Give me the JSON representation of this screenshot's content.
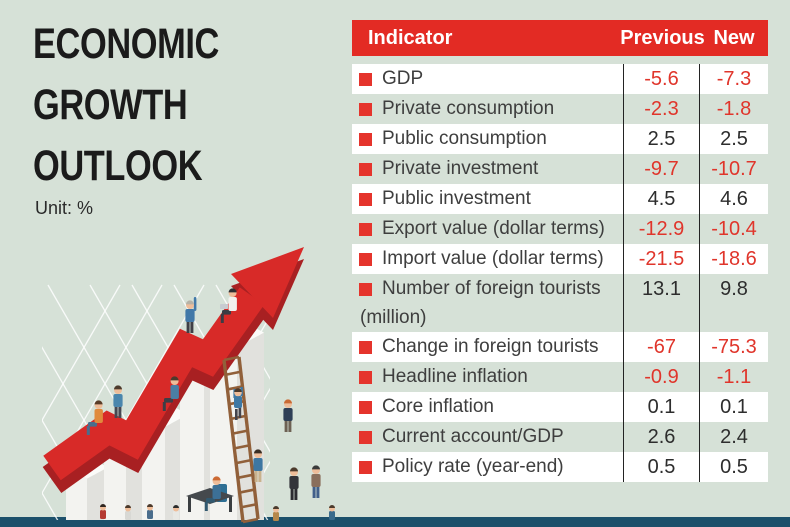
{
  "header": {
    "title_lines": [
      "ECONOMIC",
      "GROWTH",
      "OUTLOOK"
    ],
    "unit_label": "Unit: %"
  },
  "table": {
    "header": {
      "indicator": "Indicator",
      "previous": "Previous",
      "new": "New"
    },
    "rows": [
      {
        "indicator": "GDP",
        "previous": "-5.6",
        "new": "-7.3"
      },
      {
        "indicator": "Private consumption",
        "previous": "-2.3",
        "new": "-1.8"
      },
      {
        "indicator": "Public consumption",
        "previous": "2.5",
        "new": "2.5"
      },
      {
        "indicator": "Private investment",
        "previous": "-9.7",
        "new": "-10.7"
      },
      {
        "indicator": "Public investment",
        "previous": "4.5",
        "new": "4.6"
      },
      {
        "indicator": "Export value (dollar terms)",
        "previous": "-12.9",
        "new": "-10.4"
      },
      {
        "indicator": "Import value (dollar terms)",
        "previous": "-21.5",
        "new": "-18.6"
      },
      {
        "indicator": "Number of foreign tourists",
        "indicator2": "(million)",
        "previous": "13.1",
        "new": "9.8"
      },
      {
        "indicator": "Change in foreign tourists",
        "previous": "-67",
        "new": "-75.3"
      },
      {
        "indicator": "Headline inflation",
        "previous": "-0.9",
        "new": "-1.1"
      },
      {
        "indicator": "Core inflation",
        "previous": "0.1",
        "new": "0.1"
      },
      {
        "indicator": "Current account/GDP",
        "previous": "2.6",
        "new": "2.4"
      },
      {
        "indicator": "Policy rate (year-end)",
        "previous": "0.5",
        "new": "0.5"
      }
    ]
  },
  "chart_data": {
    "type": "table",
    "title": "ECONOMIC GROWTH OUTLOOK",
    "unit": "%",
    "columns": [
      "Indicator",
      "Previous",
      "New"
    ],
    "rows": [
      [
        "GDP",
        -5.6,
        -7.3
      ],
      [
        "Private consumption",
        -2.3,
        -1.8
      ],
      [
        "Public consumption",
        2.5,
        2.5
      ],
      [
        "Private investment",
        -9.7,
        -10.7
      ],
      [
        "Public investment",
        4.5,
        4.6
      ],
      [
        "Export value (dollar terms)",
        -12.9,
        -10.4
      ],
      [
        "Import value (dollar terms)",
        -21.5,
        -18.6
      ],
      [
        "Number of foreign tourists (million)",
        13.1,
        9.8
      ],
      [
        "Change in foreign tourists",
        -67,
        -75.3
      ],
      [
        "Headline inflation",
        -0.9,
        -1.1
      ],
      [
        "Core inflation",
        0.1,
        0.1
      ],
      [
        "Current account/GDP",
        2.6,
        2.4
      ],
      [
        "Policy rate (year-end)",
        0.5,
        0.5
      ]
    ],
    "layout_hints": {
      "negative_values_in_red": true,
      "zebra_rows": true,
      "header_bar": "red"
    }
  },
  "illustration": {
    "description": "Isometric business people climbing a rising red zigzag arrow over white bar-chart columns, with a ladder, a desk scene and onlookers on a teal ground band"
  },
  "colors": {
    "background": "#d6e1d7",
    "table_header_red": "#e32b24",
    "bullet_red": "#e5342c",
    "negative_red": "#e0352b",
    "value_dark": "#2d2d2d",
    "label_gray": "#3e3e3e",
    "title_black": "#1b1b1b",
    "footer_band_teal": "#1c506b",
    "arrow_red": "#d82a28",
    "arrow_shadow_red": "#a82022",
    "column_top": "#fbfbf9",
    "column_left": "#f3f3f0",
    "column_right": "#e1e1dd",
    "ladder_brown": "#91603a",
    "grid_white": "#ffffff"
  }
}
